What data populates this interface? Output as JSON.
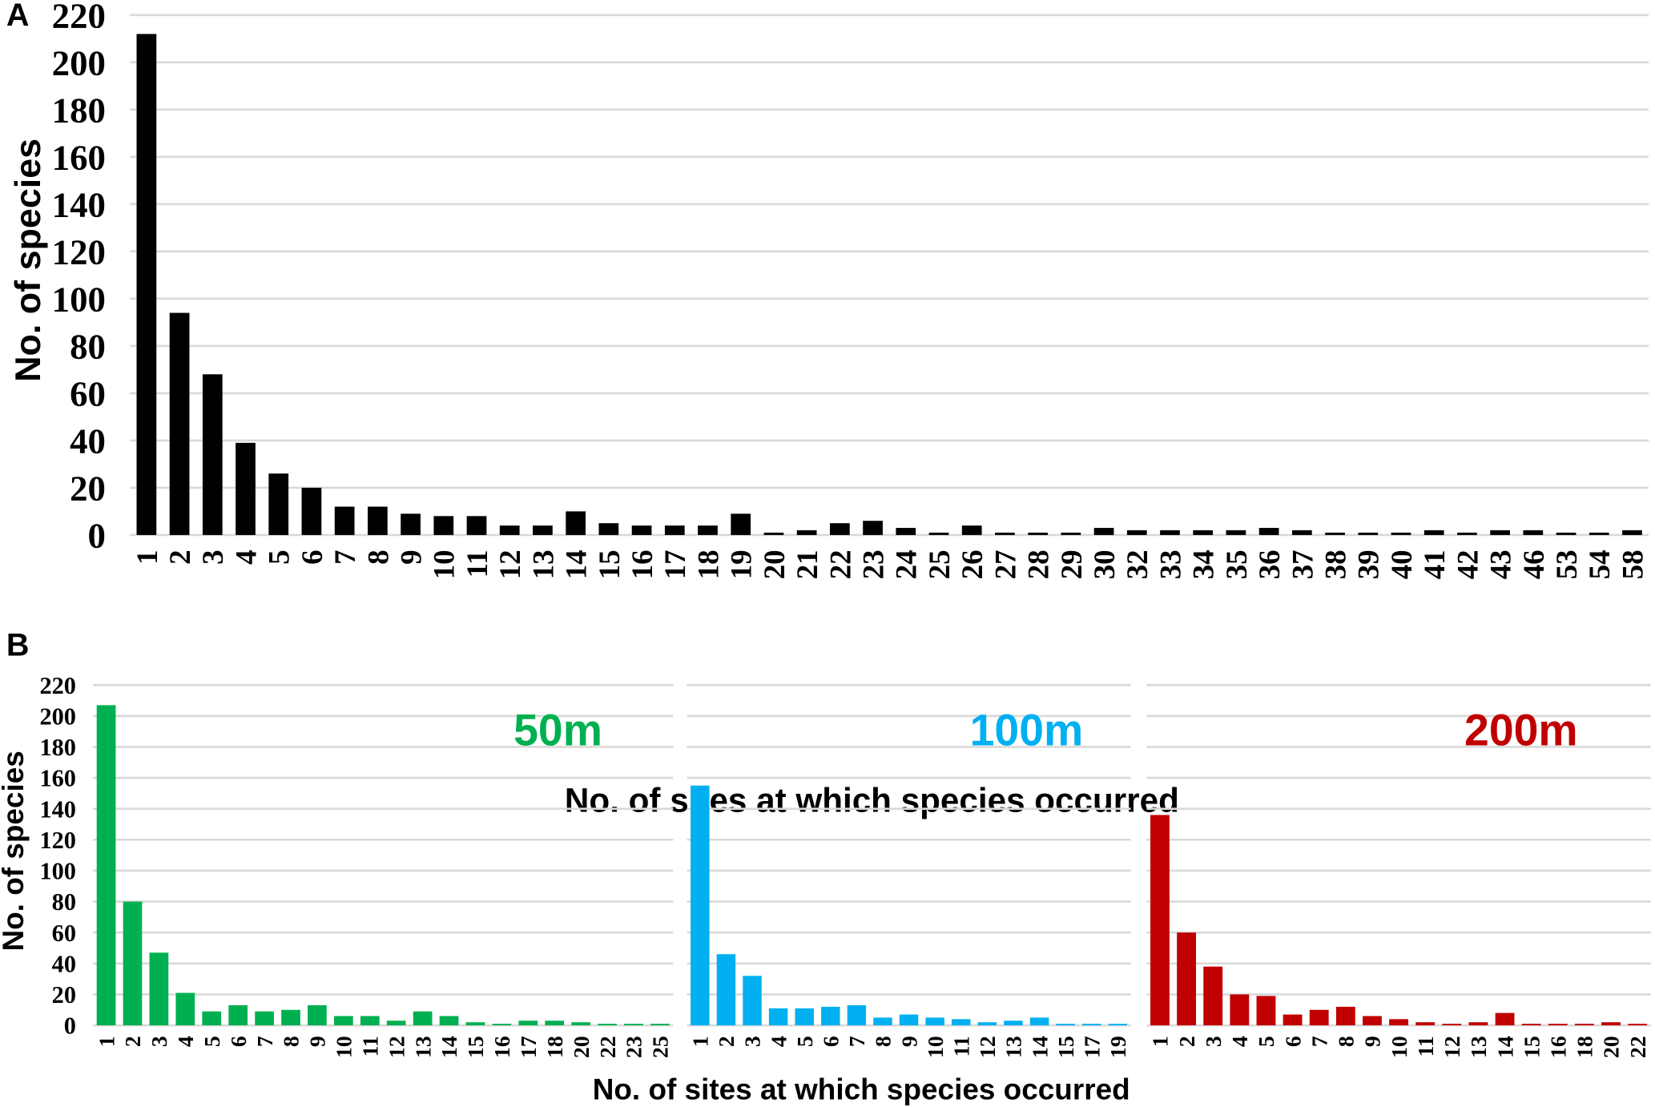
{
  "panels": {
    "A": {
      "letter": "A"
    },
    "B": {
      "letter": "B"
    }
  },
  "chart_data": [
    {
      "id": "A",
      "type": "bar",
      "title": "",
      "xlabel": "No. of sites at which species occurred",
      "ylabel": "No. of species",
      "ylim": [
        0,
        220
      ],
      "yticks": [
        0,
        20,
        40,
        60,
        80,
        100,
        120,
        140,
        160,
        180,
        200,
        220
      ],
      "grid": true,
      "color": "#000000",
      "categories": [
        "1",
        "2",
        "3",
        "4",
        "5",
        "6",
        "7",
        "8",
        "9",
        "10",
        "11",
        "12",
        "13",
        "14",
        "15",
        "16",
        "17",
        "18",
        "19",
        "20",
        "21",
        "22",
        "23",
        "24",
        "25",
        "26",
        "27",
        "28",
        "29",
        "30",
        "32",
        "33",
        "34",
        "35",
        "36",
        "37",
        "38",
        "39",
        "40",
        "41",
        "42",
        "43",
        "46",
        "53",
        "54",
        "58"
      ],
      "values": [
        212,
        94,
        68,
        39,
        26,
        20,
        12,
        12,
        9,
        8,
        8,
        4,
        4,
        10,
        5,
        4,
        4,
        4,
        9,
        1,
        2,
        5,
        6,
        3,
        1,
        4,
        1,
        1,
        1,
        3,
        2,
        2,
        2,
        2,
        3,
        2,
        1,
        1,
        1,
        2,
        1,
        2,
        2,
        1,
        1,
        2
      ]
    },
    {
      "id": "B-50m",
      "type": "bar",
      "title": "50m",
      "xlabel": "No. of sites at which species occurred",
      "ylabel": "No. of species",
      "ylim": [
        0,
        220
      ],
      "yticks": [
        0,
        20,
        40,
        60,
        80,
        100,
        120,
        140,
        160,
        180,
        200,
        220
      ],
      "grid": true,
      "color": "#00b050",
      "categories": [
        "1",
        "2",
        "3",
        "4",
        "5",
        "6",
        "7",
        "8",
        "9",
        "10",
        "11",
        "12",
        "13",
        "14",
        "15",
        "16",
        "17",
        "18",
        "20",
        "22",
        "23",
        "25"
      ],
      "values": [
        207,
        80,
        47,
        21,
        9,
        13,
        9,
        10,
        13,
        6,
        6,
        3,
        9,
        6,
        2,
        1,
        3,
        3,
        2,
        1,
        1,
        1
      ]
    },
    {
      "id": "B-100m",
      "type": "bar",
      "title": "100m",
      "ylim": [
        0,
        220
      ],
      "grid": true,
      "color": "#00b0f0",
      "categories": [
        "1",
        "2",
        "3",
        "4",
        "5",
        "6",
        "7",
        "8",
        "9",
        "10",
        "11",
        "12",
        "13",
        "14",
        "15",
        "17",
        "19"
      ],
      "values": [
        155,
        46,
        32,
        11,
        11,
        12,
        13,
        5,
        7,
        5,
        4,
        2,
        3,
        5,
        1,
        1,
        1
      ]
    },
    {
      "id": "B-200m",
      "type": "bar",
      "title": "200m",
      "ylim": [
        0,
        220
      ],
      "grid": true,
      "color": "#c00000",
      "categories": [
        "1",
        "2",
        "3",
        "4",
        "5",
        "6",
        "7",
        "8",
        "9",
        "10",
        "11",
        "12",
        "13",
        "14",
        "15",
        "16",
        "18",
        "20",
        "22"
      ],
      "values": [
        136,
        60,
        38,
        20,
        19,
        7,
        10,
        12,
        6,
        4,
        2,
        1,
        2,
        8,
        1,
        1,
        1,
        2,
        1
      ]
    }
  ]
}
